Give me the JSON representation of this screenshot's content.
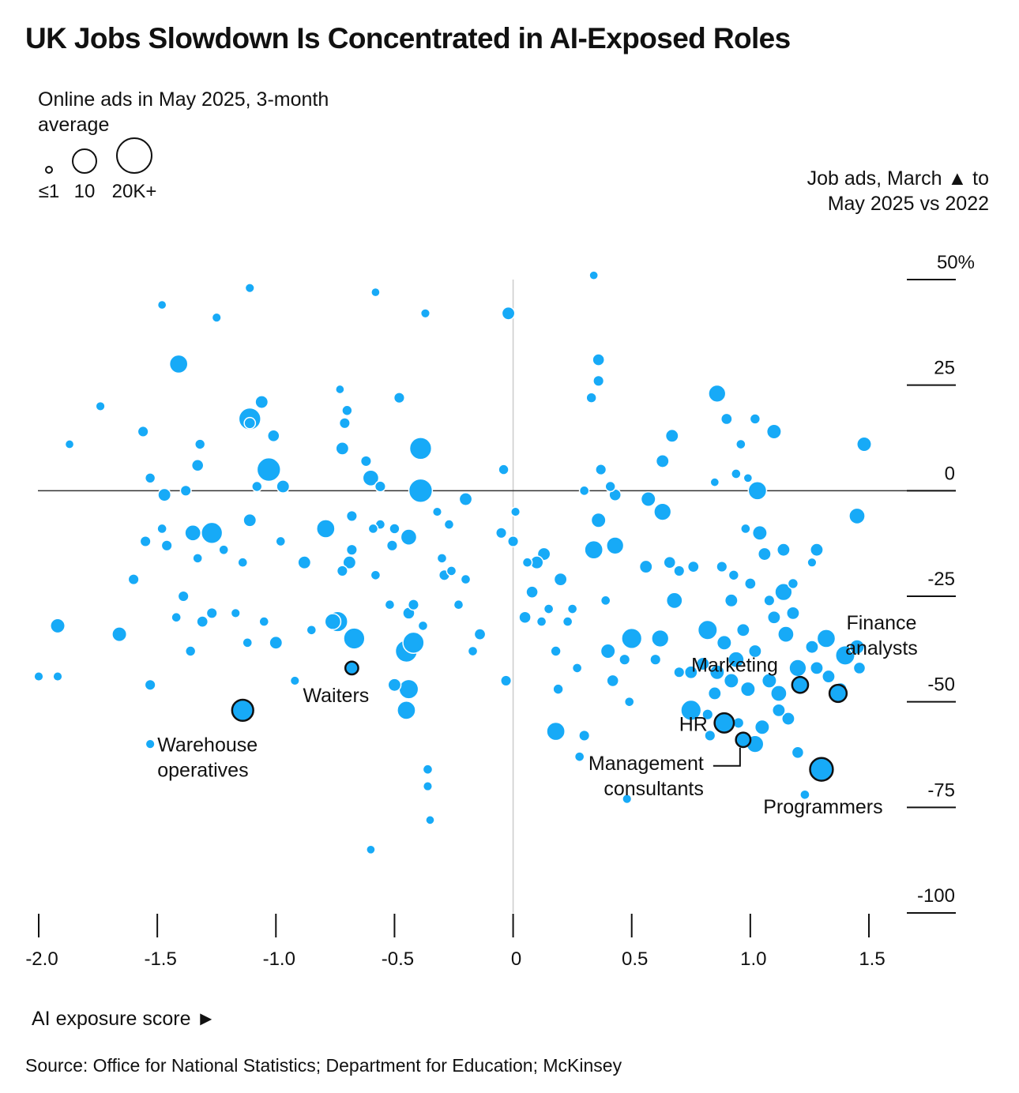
{
  "title": "UK Jobs Slowdown Is Concentrated in AI-Exposed Roles",
  "size_legend": {
    "title": "Online ads in May 2025, 3-month average",
    "entries": [
      {
        "label": "≤1",
        "value": 1
      },
      {
        "label": "10",
        "value": 10
      },
      {
        "label": "20K+",
        "value": 20
      }
    ]
  },
  "source": "Source: Office for National Statistics; Department for Education; McKinsey",
  "colors": {
    "bubble": "#17aaf7",
    "bubble_stroke": "#ffffff",
    "highlight_stroke": "#111111",
    "axis": "#111111",
    "zero_line": "#333333",
    "vertical_zero": "#cccccc"
  },
  "chart_data": {
    "type": "scatter",
    "title": "UK Jobs Slowdown Is Concentrated in AI-Exposed Roles",
    "xlabel": "AI exposure score ►",
    "ylabel": "Job ads, March ▲ to May 2025 vs 2022",
    "xlim": [
      -2.0,
      1.7
    ],
    "ylim": [
      -100,
      50
    ],
    "x_ticks": [
      {
        "value": -2.0,
        "label": "-2.0"
      },
      {
        "value": -1.5,
        "label": "-1.5"
      },
      {
        "value": -1.0,
        "label": "-1.0"
      },
      {
        "value": -0.5,
        "label": "-0.5"
      },
      {
        "value": 0,
        "label": "0"
      },
      {
        "value": 0.5,
        "label": "0.5"
      },
      {
        "value": 1.0,
        "label": "1.0"
      },
      {
        "value": 1.5,
        "label": "1.5"
      }
    ],
    "y_ticks": [
      {
        "value": 50,
        "label": "50%"
      },
      {
        "value": 25,
        "label": "25"
      },
      {
        "value": 0,
        "label": "0"
      },
      {
        "value": -25,
        "label": "-25"
      },
      {
        "value": -50,
        "label": "-50"
      },
      {
        "value": -75,
        "label": "-75"
      },
      {
        "value": -100,
        "label": "-100"
      }
    ],
    "size_unit": "thousand online ads",
    "highlighted": [
      {
        "name": "Warehouse operatives",
        "label_lines": [
          "Warehouse",
          "operatives"
        ],
        "x": -1.14,
        "y": -52,
        "size": 9,
        "label_anchor": "left"
      },
      {
        "name": "Waiters",
        "label_lines": [
          "Waiters"
        ],
        "x": -0.68,
        "y": -42,
        "size": 2,
        "label_anchor": "below"
      },
      {
        "name": "Marketing",
        "label_lines": [
          "Marketing"
        ],
        "x": 1.21,
        "y": -46,
        "size": 4,
        "label_anchor": "left"
      },
      {
        "name": "Finance analysts",
        "label_lines": [
          "Finance",
          "analysts"
        ],
        "x": 1.37,
        "y": -48,
        "size": 5,
        "label_anchor": "above"
      },
      {
        "name": "HR",
        "label_lines": [
          "HR"
        ],
        "x": 0.89,
        "y": -55,
        "size": 7,
        "label_anchor": "left"
      },
      {
        "name": "Management consultants",
        "label_lines": [
          "Management",
          "consultants"
        ],
        "x": 0.97,
        "y": -59,
        "size": 3,
        "label_anchor": "below-left"
      },
      {
        "name": "Programmers",
        "label_lines": [
          "Programmers"
        ],
        "x": 1.3,
        "y": -66,
        "size": 11,
        "label_anchor": "below"
      }
    ],
    "points": [
      {
        "x": -1.92,
        "y": -32,
        "size": 3
      },
      {
        "x": -1.66,
        "y": -34,
        "size": 3
      },
      {
        "x": -2.0,
        "y": -44,
        "size": 0.5
      },
      {
        "x": -1.92,
        "y": -44,
        "size": 0.5
      },
      {
        "x": -1.53,
        "y": -46,
        "size": 1
      },
      {
        "x": -1.53,
        "y": -60,
        "size": 0.5
      },
      {
        "x": -1.41,
        "y": 30,
        "size": 6
      },
      {
        "x": -1.35,
        "y": -10,
        "size": 4
      },
      {
        "x": -1.27,
        "y": -10,
        "size": 9
      },
      {
        "x": -1.31,
        "y": -31,
        "size": 1.2
      },
      {
        "x": -1.47,
        "y": -1,
        "size": 2
      },
      {
        "x": -1.6,
        "y": -21,
        "size": 1
      },
      {
        "x": -1.03,
        "y": 5,
        "size": 12
      },
      {
        "x": -1.11,
        "y": 17,
        "size": 10
      },
      {
        "x": -0.97,
        "y": 1,
        "size": 2
      },
      {
        "x": -1.11,
        "y": -7,
        "size": 2
      },
      {
        "x": -0.98,
        "y": -12,
        "size": 0.6
      },
      {
        "x": -0.88,
        "y": -17,
        "size": 2
      },
      {
        "x": -0.79,
        "y": -9,
        "size": 6
      },
      {
        "x": -0.74,
        "y": -31,
        "size": 8
      },
      {
        "x": -0.67,
        "y": -35,
        "size": 9
      },
      {
        "x": -0.76,
        "y": -31,
        "size": 4
      },
      {
        "x": -0.6,
        "y": 3,
        "size": 4
      },
      {
        "x": -0.45,
        "y": -38,
        "size": 10
      },
      {
        "x": -0.42,
        "y": -36,
        "size": 9
      },
      {
        "x": -0.45,
        "y": -52,
        "size": 6
      },
      {
        "x": -0.44,
        "y": -47,
        "size": 7
      },
      {
        "x": -0.39,
        "y": 10,
        "size": 10
      },
      {
        "x": -0.39,
        "y": 0,
        "size": 12
      },
      {
        "x": -0.44,
        "y": -11,
        "size": 4
      },
      {
        "x": -0.5,
        "y": -46,
        "size": 2
      },
      {
        "x": -0.48,
        "y": 22,
        "size": 1
      },
      {
        "x": -0.36,
        "y": -66,
        "size": 0.6
      },
      {
        "x": -0.36,
        "y": -70,
        "size": 0.5
      },
      {
        "x": -0.35,
        "y": -78,
        "size": 0.4
      },
      {
        "x": -0.6,
        "y": -85,
        "size": 0.4
      },
      {
        "x": -0.58,
        "y": 47,
        "size": 0.4
      },
      {
        "x": -1.11,
        "y": 48,
        "size": 0.5
      },
      {
        "x": -0.37,
        "y": 42,
        "size": 0.5
      },
      {
        "x": -0.02,
        "y": 42,
        "size": 2
      },
      {
        "x": -0.2,
        "y": -2,
        "size": 2
      },
      {
        "x": -0.05,
        "y": -10,
        "size": 1
      },
      {
        "x": -0.03,
        "y": -45,
        "size": 1
      },
      {
        "x": 0.08,
        "y": -24,
        "size": 1.5
      },
      {
        "x": 0.18,
        "y": -57,
        "size": 6
      },
      {
        "x": 0.3,
        "y": -58,
        "size": 1
      },
      {
        "x": 0.4,
        "y": -38,
        "size": 3
      },
      {
        "x": 0.5,
        "y": -35,
        "size": 8
      },
      {
        "x": 0.62,
        "y": -35,
        "size": 5
      },
      {
        "x": 0.75,
        "y": -52,
        "size": 8
      },
      {
        "x": 0.82,
        "y": -33,
        "size": 7
      },
      {
        "x": 0.86,
        "y": 23,
        "size": 5
      },
      {
        "x": 1.03,
        "y": 0,
        "size": 6
      },
      {
        "x": 1.1,
        "y": 14,
        "size": 3
      },
      {
        "x": 1.48,
        "y": 11,
        "size": 3
      },
      {
        "x": 1.45,
        "y": -6,
        "size": 4
      },
      {
        "x": 0.63,
        "y": -5,
        "size": 5
      },
      {
        "x": 0.57,
        "y": -2,
        "size": 3
      },
      {
        "x": 0.68,
        "y": -26,
        "size": 4
      },
      {
        "x": 0.34,
        "y": -14,
        "size": 6
      },
      {
        "x": 0.43,
        "y": -13,
        "size": 5
      },
      {
        "x": 0.36,
        "y": -7,
        "size": 3
      },
      {
        "x": 0.36,
        "y": 31,
        "size": 1.5
      },
      {
        "x": 0.36,
        "y": 26,
        "size": 1
      },
      {
        "x": 0.33,
        "y": 22,
        "size": 0.8
      },
      {
        "x": 1.14,
        "y": -24,
        "size": 5
      },
      {
        "x": 1.15,
        "y": -34,
        "size": 4
      },
      {
        "x": 1.2,
        "y": -42,
        "size": 5
      },
      {
        "x": 1.32,
        "y": -35,
        "size": 6
      },
      {
        "x": 1.4,
        "y": -39,
        "size": 7
      },
      {
        "x": 1.45,
        "y": -37,
        "size": 3
      },
      {
        "x": 1.12,
        "y": -48,
        "size": 4
      },
      {
        "x": 1.05,
        "y": -56,
        "size": 3
      },
      {
        "x": 1.02,
        "y": -60,
        "size": 5
      },
      {
        "x": 1.08,
        "y": -45,
        "size": 3
      },
      {
        "x": 0.99,
        "y": -47,
        "size": 3
      },
      {
        "x": 0.94,
        "y": -40,
        "size": 4
      },
      {
        "x": 0.92,
        "y": -45,
        "size": 3
      },
      {
        "x": 0.86,
        "y": -43,
        "size": 3
      },
      {
        "x": 0.89,
        "y": -36,
        "size": 3
      },
      {
        "x": 0.97,
        "y": -33,
        "size": 2
      },
      {
        "x": 1.02,
        "y": -38,
        "size": 2
      },
      {
        "x": 1.1,
        "y": -30,
        "size": 2
      },
      {
        "x": 1.18,
        "y": -29,
        "size": 2
      },
      {
        "x": 1.26,
        "y": -37,
        "size": 2
      },
      {
        "x": 1.28,
        "y": -42,
        "size": 2
      },
      {
        "x": 1.33,
        "y": -44,
        "size": 2
      },
      {
        "x": 1.2,
        "y": -62,
        "size": 1.5
      },
      {
        "x": 0.82,
        "y": -53,
        "size": 1
      },
      {
        "x": 0.95,
        "y": -55,
        "size": 1
      },
      {
        "x": 1.16,
        "y": -54,
        "size": 2
      },
      {
        "x": 1.12,
        "y": -52,
        "size": 2
      },
      {
        "x": 1.38,
        "y": -47,
        "size": 2
      },
      {
        "x": 1.46,
        "y": -42,
        "size": 1.5
      },
      {
        "x": 0.92,
        "y": -26,
        "size": 2
      },
      {
        "x": 1.0,
        "y": -22,
        "size": 1.2
      },
      {
        "x": 1.08,
        "y": -26,
        "size": 1
      },
      {
        "x": 0.76,
        "y": -18,
        "size": 1.2
      },
      {
        "x": 0.56,
        "y": -18,
        "size": 2
      },
      {
        "x": 0.66,
        "y": -17,
        "size": 1.5
      },
      {
        "x": 0.7,
        "y": -19,
        "size": 1
      },
      {
        "x": 0.88,
        "y": -18,
        "size": 1
      },
      {
        "x": 0.93,
        "y": -20,
        "size": 0.8
      },
      {
        "x": 0.8,
        "y": -41,
        "size": 2
      },
      {
        "x": 0.75,
        "y": -43,
        "size": 2
      },
      {
        "x": 0.6,
        "y": -40,
        "size": 1
      },
      {
        "x": 0.7,
        "y": -43,
        "size": 1
      },
      {
        "x": 0.47,
        "y": -40,
        "size": 1
      },
      {
        "x": 0.42,
        "y": -45,
        "size": 1.5
      },
      {
        "x": 0.49,
        "y": -50,
        "size": 0.6
      },
      {
        "x": 0.27,
        "y": -42,
        "size": 0.6
      },
      {
        "x": 0.19,
        "y": -47,
        "size": 0.8
      },
      {
        "x": 0.18,
        "y": -38,
        "size": 0.8
      },
      {
        "x": 0.12,
        "y": -31,
        "size": 0.6
      },
      {
        "x": 0.15,
        "y": -28,
        "size": 0.6
      },
      {
        "x": 0.25,
        "y": -28,
        "size": 0.6
      },
      {
        "x": 0.2,
        "y": -21,
        "size": 2
      },
      {
        "x": 0.13,
        "y": -15,
        "size": 2
      },
      {
        "x": 0.06,
        "y": -17,
        "size": 0.6
      },
      {
        "x": 0.0,
        "y": -12,
        "size": 1
      },
      {
        "x": -0.14,
        "y": -34,
        "size": 1.2
      },
      {
        "x": -0.17,
        "y": -38,
        "size": 0.6
      },
      {
        "x": -0.23,
        "y": -27,
        "size": 0.6
      },
      {
        "x": -0.29,
        "y": -20,
        "size": 1
      },
      {
        "x": -0.26,
        "y": -19,
        "size": 0.6
      },
      {
        "x": -0.2,
        "y": -21,
        "size": 0.6
      },
      {
        "x": -0.3,
        "y": -16,
        "size": 0.6
      },
      {
        "x": -0.27,
        "y": -8,
        "size": 0.6
      },
      {
        "x": -0.32,
        "y": -5,
        "size": 0.5
      },
      {
        "x": -0.42,
        "y": -27,
        "size": 1
      },
      {
        "x": -0.44,
        "y": -29,
        "size": 1.5
      },
      {
        "x": -0.38,
        "y": -32,
        "size": 0.6
      },
      {
        "x": -0.52,
        "y": -27,
        "size": 0.6
      },
      {
        "x": -0.58,
        "y": -20,
        "size": 0.6
      },
      {
        "x": -0.51,
        "y": -13,
        "size": 1
      },
      {
        "x": -0.56,
        "y": -8,
        "size": 0.6
      },
      {
        "x": -0.68,
        "y": -6,
        "size": 1
      },
      {
        "x": -0.68,
        "y": -14,
        "size": 1
      },
      {
        "x": -0.69,
        "y": -17,
        "size": 2
      },
      {
        "x": -0.72,
        "y": -19,
        "size": 1
      },
      {
        "x": -0.72,
        "y": 10,
        "size": 2
      },
      {
        "x": -0.85,
        "y": -33,
        "size": 0.6
      },
      {
        "x": -0.92,
        "y": -45,
        "size": 0.5
      },
      {
        "x": -1.0,
        "y": -36,
        "size": 2
      },
      {
        "x": -1.05,
        "y": -31,
        "size": 0.6
      },
      {
        "x": -1.12,
        "y": -36,
        "size": 0.6
      },
      {
        "x": -1.17,
        "y": -29,
        "size": 0.5
      },
      {
        "x": -1.27,
        "y": -29,
        "size": 1
      },
      {
        "x": -1.36,
        "y": -38,
        "size": 0.8
      },
      {
        "x": -1.42,
        "y": -30,
        "size": 0.6
      },
      {
        "x": -1.39,
        "y": -25,
        "size": 1
      },
      {
        "x": -1.46,
        "y": -13,
        "size": 1
      },
      {
        "x": -1.55,
        "y": -12,
        "size": 1
      },
      {
        "x": -1.48,
        "y": -9,
        "size": 0.6
      },
      {
        "x": -1.33,
        "y": -16,
        "size": 0.6
      },
      {
        "x": -1.22,
        "y": -14,
        "size": 0.6
      },
      {
        "x": -1.14,
        "y": -17,
        "size": 0.6
      },
      {
        "x": -1.32,
        "y": 11,
        "size": 0.8
      },
      {
        "x": -1.33,
        "y": 6,
        "size": 1.5
      },
      {
        "x": -1.56,
        "y": 14,
        "size": 1
      },
      {
        "x": -1.74,
        "y": 20,
        "size": 0.5
      },
      {
        "x": -1.87,
        "y": 11,
        "size": 0.4
      },
      {
        "x": -1.53,
        "y": 3,
        "size": 0.8
      },
      {
        "x": -1.38,
        "y": 0,
        "size": 1
      },
      {
        "x": -1.25,
        "y": 41,
        "size": 0.5
      },
      {
        "x": -1.48,
        "y": 44,
        "size": 0.4
      },
      {
        "x": -1.06,
        "y": 21,
        "size": 2
      },
      {
        "x": -1.01,
        "y": 13,
        "size": 1.5
      },
      {
        "x": -0.73,
        "y": 24,
        "size": 0.4
      },
      {
        "x": -0.7,
        "y": 19,
        "size": 0.8
      },
      {
        "x": -0.71,
        "y": 16,
        "size": 1
      },
      {
        "x": -0.62,
        "y": 7,
        "size": 1
      },
      {
        "x": -0.56,
        "y": 1,
        "size": 1
      },
      {
        "x": -0.04,
        "y": 5,
        "size": 0.8
      },
      {
        "x": 0.37,
        "y": 5,
        "size": 1
      },
      {
        "x": 0.63,
        "y": 7,
        "size": 2
      },
      {
        "x": 0.67,
        "y": 13,
        "size": 2
      },
      {
        "x": 0.9,
        "y": 17,
        "size": 1.2
      },
      {
        "x": 1.02,
        "y": 17,
        "size": 0.8
      },
      {
        "x": 0.96,
        "y": 11,
        "size": 0.6
      },
      {
        "x": 0.94,
        "y": 4,
        "size": 0.6
      },
      {
        "x": 0.85,
        "y": 2,
        "size": 0.4
      },
      {
        "x": 0.99,
        "y": 3,
        "size": 0.4
      },
      {
        "x": 0.98,
        "y": -9,
        "size": 0.6
      },
      {
        "x": 1.04,
        "y": -10,
        "size": 3
      },
      {
        "x": 1.06,
        "y": -15,
        "size": 2
      },
      {
        "x": 1.14,
        "y": -14,
        "size": 2
      },
      {
        "x": 1.28,
        "y": -14,
        "size": 2
      },
      {
        "x": 1.26,
        "y": -17,
        "size": 0.5
      },
      {
        "x": 1.18,
        "y": -22,
        "size": 0.8
      },
      {
        "x": 0.43,
        "y": -1,
        "size": 1.5
      },
      {
        "x": 0.41,
        "y": 1,
        "size": 0.8
      },
      {
        "x": 0.3,
        "y": 0,
        "size": 0.6
      },
      {
        "x": 0.39,
        "y": -26,
        "size": 0.6
      },
      {
        "x": 0.23,
        "y": -31,
        "size": 0.6
      },
      {
        "x": 0.1,
        "y": -17,
        "size": 2
      },
      {
        "x": 0.34,
        "y": 51,
        "size": 0.4
      },
      {
        "x": 0.48,
        "y": -73,
        "size": 0.5
      },
      {
        "x": 1.23,
        "y": -72,
        "size": 0.6
      },
      {
        "x": -1.11,
        "y": 16,
        "size": 1.2
      },
      {
        "x": -0.59,
        "y": -9,
        "size": 0.6
      },
      {
        "x": -1.08,
        "y": 1,
        "size": 0.8
      },
      {
        "x": -0.5,
        "y": -9,
        "size": 0.8
      },
      {
        "x": 0.01,
        "y": -5,
        "size": 0.5
      },
      {
        "x": 0.05,
        "y": -30,
        "size": 1.5
      },
      {
        "x": 0.28,
        "y": -63,
        "size": 0.6
      },
      {
        "x": 0.85,
        "y": -48,
        "size": 2
      },
      {
        "x": 0.83,
        "y": -58,
        "size": 1
      }
    ]
  }
}
